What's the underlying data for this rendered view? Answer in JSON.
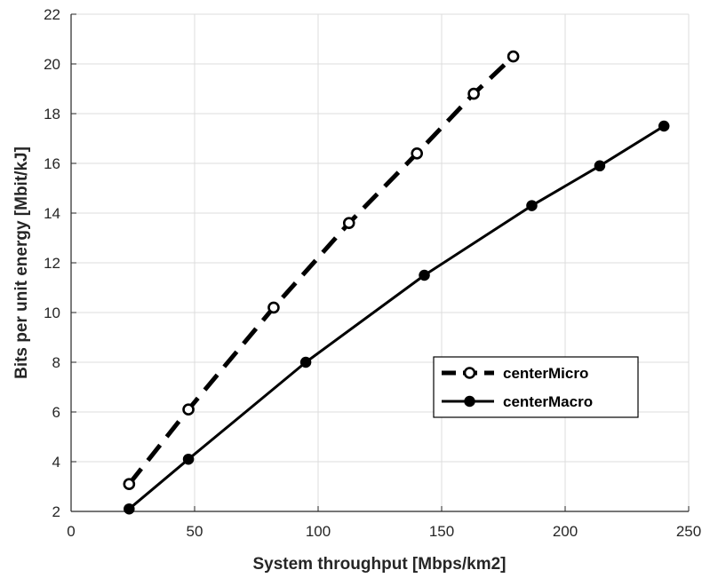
{
  "chart_data": {
    "type": "line",
    "xlabel": "System throughput [Mbps/km2]",
    "ylabel": "Bits per unit energy [Mbit/kJ]",
    "xlim": [
      0,
      250
    ],
    "ylim": [
      2,
      22
    ],
    "x_ticks": [
      0,
      50,
      100,
      150,
      200,
      250
    ],
    "y_ticks": [
      2,
      4,
      6,
      8,
      10,
      12,
      14,
      16,
      18,
      20,
      22
    ],
    "grid": true,
    "legend_position": "right-middle",
    "series": [
      {
        "name": "centerMicro",
        "line_style": "dashed",
        "marker": "open-circle",
        "color": "#000000",
        "x": [
          23.5,
          47.5,
          82,
          112.5,
          140,
          163,
          179
        ],
        "y": [
          3.1,
          6.1,
          10.2,
          13.6,
          16.4,
          18.8,
          20.3
        ]
      },
      {
        "name": "centerMacro",
        "line_style": "solid",
        "marker": "filled-circle",
        "color": "#000000",
        "x": [
          23.5,
          47.5,
          95,
          143,
          186.5,
          214,
          240
        ],
        "y": [
          2.1,
          4.1,
          8.0,
          11.5,
          14.3,
          15.9,
          17.5
        ]
      }
    ]
  }
}
